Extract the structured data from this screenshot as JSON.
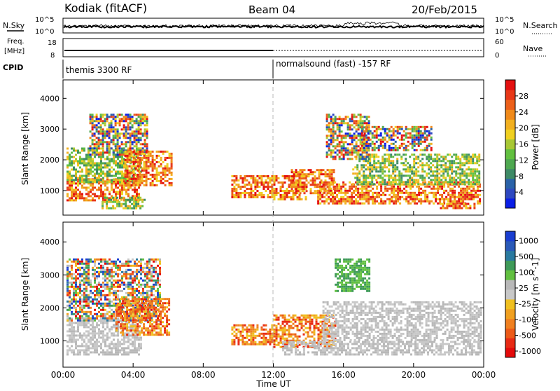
{
  "header": {
    "station": "Kodiak (fitACF)",
    "beam": "Beam 04",
    "date": "20/Feb/2015"
  },
  "noise_panel": {
    "left_label": "N.Sky",
    "right_label": "N.Search",
    "left_ticks": [
      "10^5",
      "10^0"
    ],
    "right_ticks": [
      "10^5",
      "10^0"
    ]
  },
  "freq_panel": {
    "left_label_line1": "Freq.",
    "left_label_line2": "[MHz]",
    "right_label": "Nave",
    "left_ticks": [
      "18",
      "8"
    ],
    "right_ticks": [
      "60",
      "0"
    ]
  },
  "cpid_panel": {
    "label": "CPID",
    "segments": [
      {
        "start_hour": 0,
        "text": "themis 3300 RF"
      },
      {
        "start_hour": 12,
        "text": "normalsound (fast) -157 RF"
      }
    ]
  },
  "chart_data": [
    {
      "type": "heatmap",
      "title": "",
      "xlabel": "",
      "ylabel": "Slant Range [km]",
      "colorbar_label": "Power [dB]",
      "xlim": [
        0,
        24
      ],
      "ylim": [
        200,
        4600
      ],
      "y_ticks": [
        1000,
        2000,
        3000,
        4000
      ],
      "colorbar_ticks": [
        "4",
        "8",
        "12",
        "16",
        "20",
        "24",
        "28"
      ],
      "colorbar_colors": [
        "#0a1ee6",
        "#2e48c0",
        "#2a62a8",
        "#3e8a66",
        "#4ea850",
        "#62c040",
        "#a8c834",
        "#f0d020",
        "#f2b020",
        "#f08a1a",
        "#ec601a",
        "#e83818",
        "#e41010"
      ],
      "regions": [
        {
          "x": [
            0.2,
            4.3
          ],
          "y": [
            700,
            1400
          ],
          "level": "high"
        },
        {
          "x": [
            0.2,
            4.5
          ],
          "y": [
            1300,
            2400
          ],
          "level": "mid"
        },
        {
          "x": [
            1.5,
            4.8
          ],
          "y": [
            2200,
            3500
          ],
          "level": "mixed"
        },
        {
          "x": [
            3.5,
            6.2
          ],
          "y": [
            1200,
            2300
          ],
          "level": "high"
        },
        {
          "x": [
            2.2,
            4.6
          ],
          "y": [
            400,
            800
          ],
          "level": "mid"
        },
        {
          "x": [
            9.6,
            12.0
          ],
          "y": [
            800,
            1500
          ],
          "level": "high"
        },
        {
          "x": [
            12.0,
            13.8
          ],
          "y": [
            700,
            1500
          ],
          "level": "high"
        },
        {
          "x": [
            13.0,
            15.5
          ],
          "y": [
            900,
            1700
          ],
          "level": "high"
        },
        {
          "x": [
            14.5,
            23.8
          ],
          "y": [
            600,
            1300
          ],
          "level": "high"
        },
        {
          "x": [
            16.5,
            23.8
          ],
          "y": [
            1200,
            2200
          ],
          "level": "mid"
        },
        {
          "x": [
            15.0,
            17.5
          ],
          "y": [
            2000,
            3500
          ],
          "level": "mixed"
        },
        {
          "x": [
            17.0,
            21.0
          ],
          "y": [
            2300,
            3100
          ],
          "level": "mixed"
        },
        {
          "x": [
            21.5,
            23.5
          ],
          "y": [
            400,
            600
          ],
          "level": "high"
        }
      ]
    },
    {
      "type": "heatmap",
      "title": "",
      "xlabel": "Time UT",
      "ylabel": "Slant Range [km]",
      "colorbar_label": "Velocity [m s^-1]",
      "xlim": [
        0,
        24
      ],
      "ylim": [
        200,
        4600
      ],
      "y_ticks": [
        1000,
        2000,
        3000,
        4000
      ],
      "x_ticks": [
        "00:00",
        "04:00",
        "08:00",
        "12:00",
        "16:00",
        "20:00",
        "00:00"
      ],
      "colorbar_ticks": [
        "1000",
        "500",
        "100",
        "25",
        "-25",
        "-100",
        "-500",
        "-1000"
      ],
      "colorbar_colors": [
        "#1a3ed0",
        "#2a5ab8",
        "#2a7aa0",
        "#3e9a58",
        "#62c040",
        "#b8b8b8",
        "#c8c8c8",
        "#f0c020",
        "#f0a020",
        "#f08020",
        "#ec5a18",
        "#e82a14",
        "#e40a0a"
      ],
      "regions": [
        {
          "x": [
            0.2,
            4.5
          ],
          "y": [
            600,
            1700
          ],
          "level": "ground"
        },
        {
          "x": [
            0.2,
            5.5
          ],
          "y": [
            1600,
            3500
          ],
          "level": "mixed"
        },
        {
          "x": [
            3.0,
            6.0
          ],
          "y": [
            1200,
            2300
          ],
          "level": "negative"
        },
        {
          "x": [
            9.6,
            12.0
          ],
          "y": [
            900,
            1500
          ],
          "level": "negative"
        },
        {
          "x": [
            12.0,
            15.5
          ],
          "y": [
            800,
            1800
          ],
          "level": "negative"
        },
        {
          "x": [
            12.5,
            23.8
          ],
          "y": [
            600,
            1000
          ],
          "level": "ground"
        },
        {
          "x": [
            14.8,
            23.8
          ],
          "y": [
            1000,
            2200
          ],
          "level": "ground"
        },
        {
          "x": [
            15.5,
            17.5
          ],
          "y": [
            2500,
            3500
          ],
          "level": "positive"
        }
      ]
    }
  ]
}
